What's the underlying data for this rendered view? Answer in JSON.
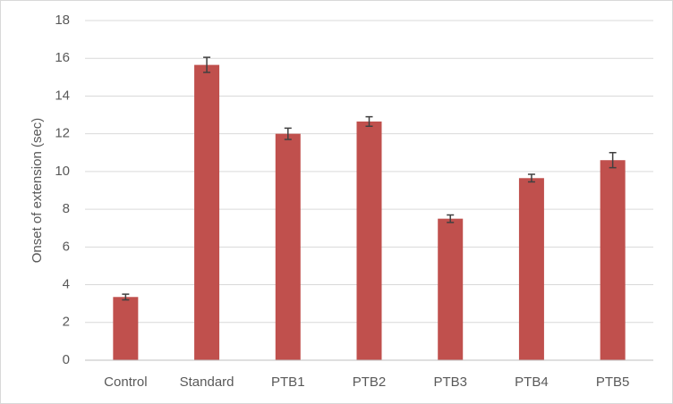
{
  "chart_data": {
    "type": "bar",
    "y_label": "Onset of extension (sec)",
    "categories": [
      "Control",
      "Standard",
      "PTB1",
      "PTB2",
      "PTB3",
      "PTB4",
      "PTB5"
    ],
    "values": [
      3.35,
      15.65,
      12.0,
      12.65,
      7.5,
      9.65,
      10.6
    ],
    "errors": [
      0.15,
      0.4,
      0.3,
      0.25,
      0.2,
      0.2,
      0.4
    ],
    "color": "#c0504d",
    "error_color": "#404040",
    "ylim": [
      0,
      18
    ],
    "yticks": [
      0,
      2,
      4,
      6,
      8,
      10,
      12,
      14,
      16,
      18
    ],
    "grid": true
  }
}
